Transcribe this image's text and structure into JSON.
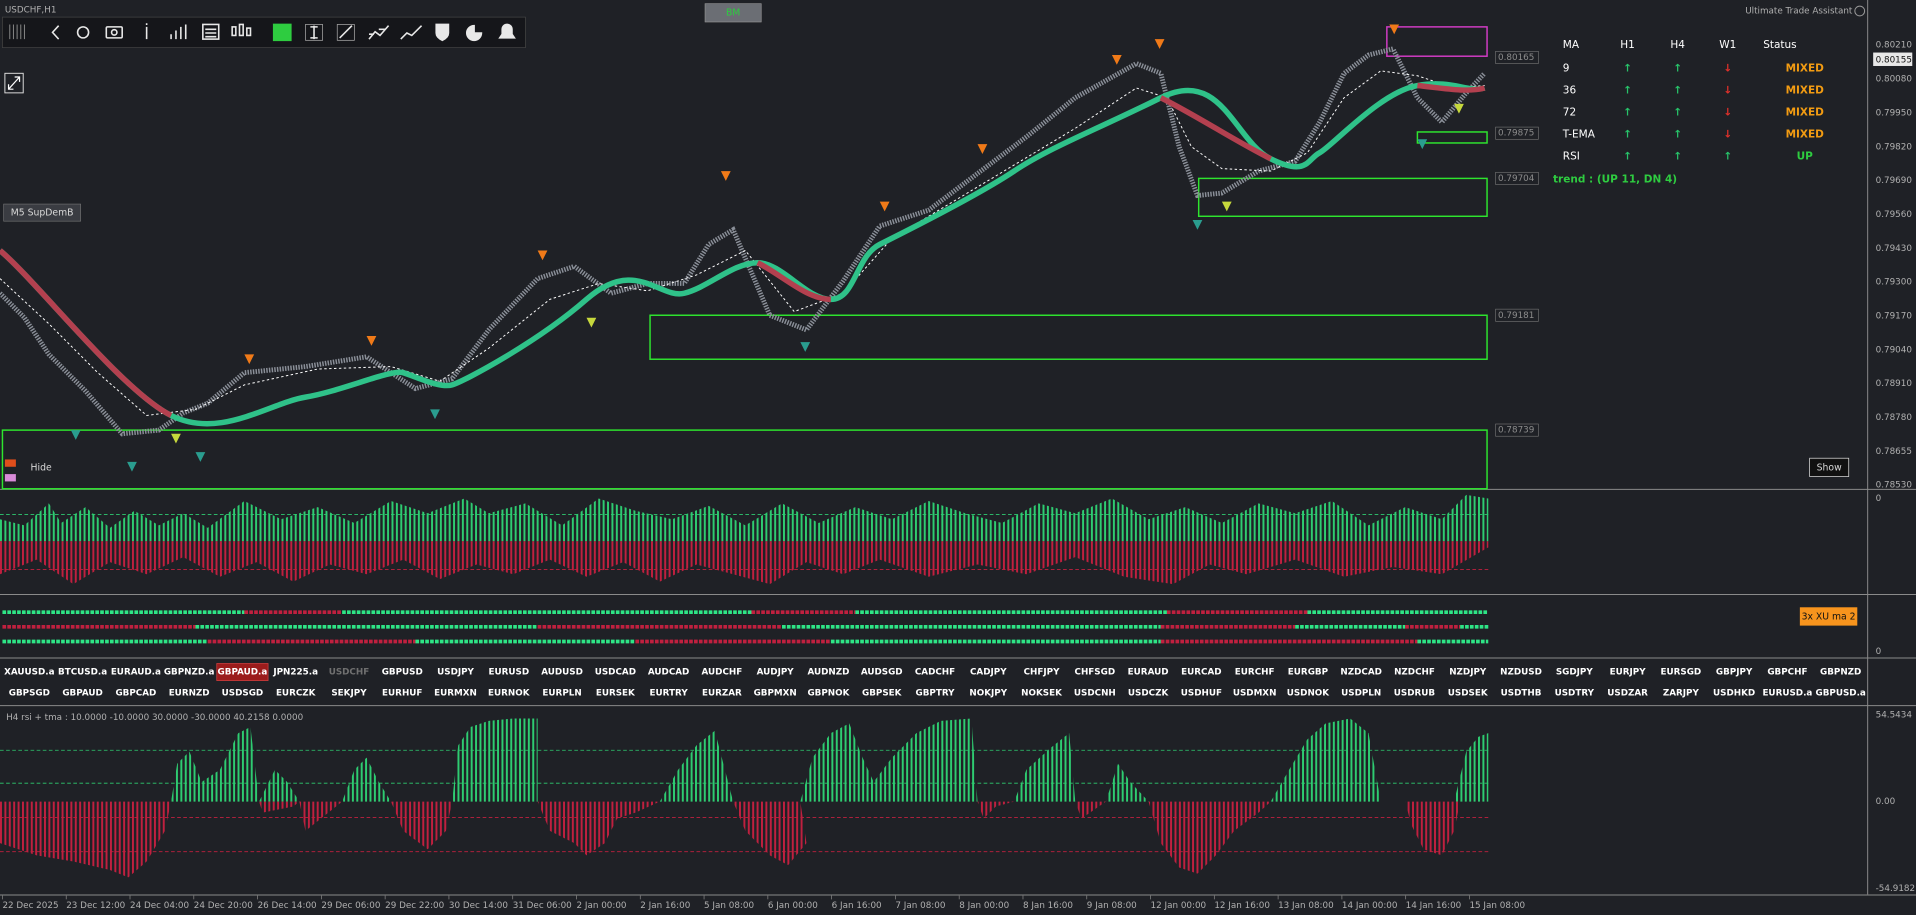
{
  "header": {
    "symbol": "USDCHF,H1",
    "button": "BM",
    "assistant": "Ultimate Trade Assistant"
  },
  "main": {
    "sd_button": "M5 SupDemB",
    "hide": "Hide",
    "show": "Show",
    "price_labels": [
      "0.80210",
      "0.80080",
      "0.79950",
      "0.79820",
      "0.79690",
      "0.79560",
      "0.79430",
      "0.79300",
      "0.79170",
      "0.79040",
      "0.78910",
      "0.78780",
      "0.78655",
      "0.78530"
    ],
    "current_price": "0.80155",
    "zone_labels": [
      "0.80165",
      "0.79875",
      "0.79704",
      "0.79181",
      "0.78739"
    ]
  },
  "ma_table": {
    "headers": [
      "MA",
      "H1",
      "H4",
      "W1",
      "Status"
    ],
    "rows": [
      {
        "label": "9",
        "cells": [
          {
            "text": "↑",
            "color": "#27c46a"
          },
          {
            "text": "↑",
            "color": "#27c46a"
          },
          {
            "text": "↓",
            "color": "#e0302a"
          }
        ],
        "status": {
          "text": "MIXED",
          "color": "#f39c12"
        }
      },
      {
        "label": "36",
        "cells": [
          {
            "text": "↑",
            "color": "#27c46a"
          },
          {
            "text": "↑",
            "color": "#27c46a"
          },
          {
            "text": "↓",
            "color": "#e0302a"
          }
        ],
        "status": {
          "text": "MIXED",
          "color": "#f39c12"
        }
      },
      {
        "label": "72",
        "cells": [
          {
            "text": "↑",
            "color": "#27c46a"
          },
          {
            "text": "↑",
            "color": "#27c46a"
          },
          {
            "text": "↓",
            "color": "#e0302a"
          }
        ],
        "status": {
          "text": "MIXED",
          "color": "#f39c12"
        }
      },
      {
        "label": "T-EMA",
        "cells": [
          {
            "text": "↑",
            "color": "#27c46a"
          },
          {
            "text": "↑",
            "color": "#27c46a"
          },
          {
            "text": "↓",
            "color": "#e0302a"
          }
        ],
        "status": {
          "text": "MIXED",
          "color": "#f39c12"
        }
      },
      {
        "label": "RSI",
        "cells": [
          {
            "text": "↑",
            "color": "#27c46a"
          },
          {
            "text": "↑",
            "color": "#27c46a"
          },
          {
            "text": "↑",
            "color": "#27c46a"
          }
        ],
        "status": {
          "text": "UP",
          "color": "#2ecc40"
        }
      }
    ],
    "trend": "trend : (UP 11, DN 4)"
  },
  "histogram_panel": {
    "axis_label": "0"
  },
  "xu_panel": {
    "label": "3x XU ma 2",
    "axis_label": "0"
  },
  "symbols": {
    "rows": [
      [
        "XAUUSD.a",
        "BTCUSD.a",
        "EURAUD.a",
        "GBPNZD.a",
        "GBPAUD.a",
        "JPN225.a",
        "USDCHF",
        "GBPUSD",
        "USDJPY",
        "EURUSD",
        "AUDUSD",
        "USDCAD",
        "AUDCAD",
        "AUDCHF",
        "AUDJPY",
        "AUDNZD",
        "AUDSGD",
        "CADCHF",
        "CADJPY",
        "CHFJPY",
        "CHFSGD",
        "EURAUD",
        "EURCAD",
        "EURCHF",
        "EURGBP",
        "NZDCAD",
        "NZDCHF",
        "NZDJPY",
        "NZDUSD",
        "SGDJPY",
        "EURJPY",
        "EURSGD",
        "GBPJPY",
        "GBPCHF",
        "GBPNZD"
      ],
      [
        "GBPSGD",
        "GBPAUD",
        "GBPCAD",
        "EURNZD",
        "USDSGD",
        "EURCZK",
        "SEKJPY",
        "EURHUF",
        "EURMXN",
        "EURNOK",
        "EURPLN",
        "EURSEK",
        "EURTRY",
        "EURZAR",
        "GBPMXN",
        "GBPNOK",
        "GBPSEK",
        "GBPTRY",
        "NOKJPY",
        "NOKSEK",
        "USDCNH",
        "USDCZK",
        "USDHUF",
        "USDMXN",
        "USDNOK",
        "USDPLN",
        "USDRUB",
        "USDSEK",
        "USDTHB",
        "USDTRY",
        "USDZAR",
        "ZARJPY",
        "USDHKD",
        "EURUSD.a",
        "GBPUSD.a"
      ]
    ]
  },
  "rsi_panel": {
    "label": "H4 rsi + tma  :  10.0000 -10.0000 30.0000 -30.0000 40.2158 0.0000",
    "axis_labels": [
      "54.5434",
      "0.00",
      "-54.9182"
    ]
  },
  "time_axis": [
    "22 Dec 2025",
    "23 Dec 12:00",
    "24 Dec 04:00",
    "24 Dec 20:00",
    "26 Dec 14:00",
    "29 Dec 06:00",
    "29 Dec 22:00",
    "30 Dec 14:00",
    "31 Dec 06:00",
    "2 Jan 00:00",
    "2 Jan 16:00",
    "5 Jan 08:00",
    "6 Jan 00:00",
    "6 Jan 16:00",
    "7 Jan 08:00",
    "8 Jan 00:00",
    "8 Jan 16:00",
    "9 Jan 08:00",
    "12 Jan 00:00",
    "12 Jan 16:00",
    "13 Jan 08:00",
    "14 Jan 00:00",
    "14 Jan 16:00",
    "15 Jan 08:00"
  ]
}
